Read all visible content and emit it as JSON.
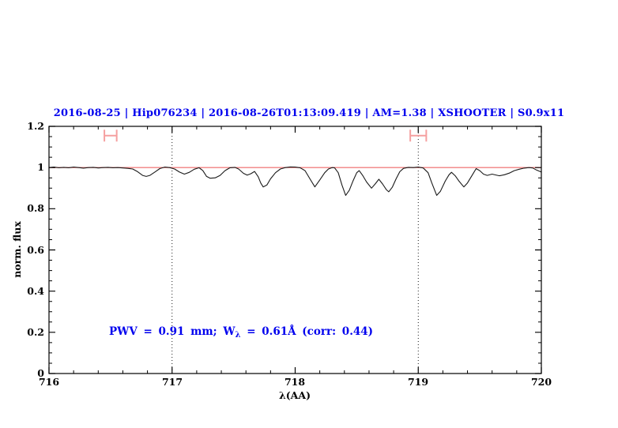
{
  "title": "2016-08-25 | Hip076234 | 2016-08-26T01:13:09.419 | AM=1.38 | XSHOOTER | S0.9x11",
  "annotation": {
    "prefix": "PWV = 0.91 mm; W",
    "subscript": "λ",
    "suffix": " = 0.61Å (corr: 0.44)"
  },
  "colors": {
    "accent_blue": "#0000EE",
    "continuum_red": "#F08080",
    "marker_pink": "#F5A0A0",
    "spectrum": "#1A1A1A",
    "frame": "#000000"
  },
  "chart_data": {
    "type": "line",
    "title": "2016-08-25 | Hip076234 | 2016-08-26T01:13:09.419 | AM=1.38 | XSHOOTER | S0.9x11",
    "xlabel": "λ(AA)",
    "ylabel": "norm. flux",
    "xlim": [
      716,
      720
    ],
    "ylim": [
      0,
      1.2
    ],
    "xtick_labels": [
      "716",
      "717",
      "718",
      "719",
      "720"
    ],
    "ytick_labels": [
      "0",
      "0.2",
      "0.4",
      "0.6",
      "0.8",
      "1",
      "1.2"
    ],
    "x_major_step": 1,
    "x_minor_step": 0.2,
    "y_major_step": 0.2,
    "y_minor_step": 0.05,
    "grid": "dotted vertical lines at integration window edges",
    "dotted_vlines_x": [
      717,
      719
    ],
    "continuum_y": 1.0,
    "range_markers": [
      {
        "x_center": 716.5,
        "x_half_width": 0.05,
        "y": 1.155
      },
      {
        "x_center": 719.0,
        "x_half_width": 0.065,
        "y": 1.155
      }
    ],
    "series": [
      {
        "name": "normalized telluric spectrum",
        "points": [
          [
            716.0,
            1.0
          ],
          [
            716.04,
            1.002
          ],
          [
            716.08,
            0.999
          ],
          [
            716.12,
            1.001
          ],
          [
            716.16,
            0.999
          ],
          [
            716.2,
            1.002
          ],
          [
            716.24,
            1.0
          ],
          [
            716.28,
            0.997
          ],
          [
            716.32,
            1.0
          ],
          [
            716.36,
            1.001
          ],
          [
            716.4,
            0.998
          ],
          [
            716.44,
            1.0
          ],
          [
            716.48,
            1.001
          ],
          [
            716.52,
            0.999
          ],
          [
            716.56,
            1.0
          ],
          [
            716.6,
            0.998
          ],
          [
            716.64,
            0.996
          ],
          [
            716.68,
            0.993
          ],
          [
            716.72,
            0.98
          ],
          [
            716.76,
            0.962
          ],
          [
            716.79,
            0.957
          ],
          [
            716.82,
            0.962
          ],
          [
            716.86,
            0.978
          ],
          [
            716.9,
            0.995
          ],
          [
            716.94,
            1.002
          ],
          [
            716.98,
            1.0
          ],
          [
            717.02,
            0.993
          ],
          [
            717.06,
            0.978
          ],
          [
            717.1,
            0.968
          ],
          [
            717.14,
            0.977
          ],
          [
            717.18,
            0.992
          ],
          [
            717.22,
            0.999
          ],
          [
            717.25,
            0.985
          ],
          [
            717.28,
            0.957
          ],
          [
            717.31,
            0.948
          ],
          [
            717.35,
            0.95
          ],
          [
            717.39,
            0.962
          ],
          [
            717.43,
            0.985
          ],
          [
            717.47,
            0.999
          ],
          [
            717.51,
            1.001
          ],
          [
            717.54,
            0.993
          ],
          [
            717.58,
            0.972
          ],
          [
            717.61,
            0.963
          ],
          [
            717.64,
            0.97
          ],
          [
            717.67,
            0.981
          ],
          [
            717.7,
            0.955
          ],
          [
            717.72,
            0.925
          ],
          [
            717.74,
            0.906
          ],
          [
            717.77,
            0.915
          ],
          [
            717.8,
            0.945
          ],
          [
            717.84,
            0.975
          ],
          [
            717.88,
            0.993
          ],
          [
            717.92,
            1.0
          ],
          [
            717.96,
            1.003
          ],
          [
            718.0,
            1.002
          ],
          [
            718.04,
            0.999
          ],
          [
            718.08,
            0.985
          ],
          [
            718.12,
            0.945
          ],
          [
            718.16,
            0.906
          ],
          [
            718.2,
            0.94
          ],
          [
            718.24,
            0.975
          ],
          [
            718.27,
            0.993
          ],
          [
            718.3,
            1.0
          ],
          [
            718.32,
            0.999
          ],
          [
            718.35,
            0.975
          ],
          [
            718.38,
            0.915
          ],
          [
            718.41,
            0.865
          ],
          [
            718.44,
            0.89
          ],
          [
            718.47,
            0.935
          ],
          [
            718.5,
            0.975
          ],
          [
            718.52,
            0.985
          ],
          [
            718.55,
            0.96
          ],
          [
            718.58,
            0.93
          ],
          [
            718.62,
            0.9
          ],
          [
            718.65,
            0.92
          ],
          [
            718.68,
            0.943
          ],
          [
            718.71,
            0.92
          ],
          [
            718.74,
            0.893
          ],
          [
            718.76,
            0.882
          ],
          [
            718.79,
            0.905
          ],
          [
            718.82,
            0.945
          ],
          [
            718.85,
            0.98
          ],
          [
            718.88,
            0.996
          ],
          [
            718.92,
            1.001
          ],
          [
            718.96,
            1.0
          ],
          [
            719.0,
            1.002
          ],
          [
            719.04,
            0.998
          ],
          [
            719.08,
            0.975
          ],
          [
            719.11,
            0.925
          ],
          [
            719.15,
            0.865
          ],
          [
            719.18,
            0.885
          ],
          [
            719.22,
            0.935
          ],
          [
            719.25,
            0.965
          ],
          [
            719.27,
            0.977
          ],
          [
            719.3,
            0.96
          ],
          [
            719.33,
            0.935
          ],
          [
            719.37,
            0.906
          ],
          [
            719.4,
            0.925
          ],
          [
            719.44,
            0.965
          ],
          [
            719.47,
            0.995
          ],
          [
            719.5,
            0.985
          ],
          [
            719.53,
            0.968
          ],
          [
            719.56,
            0.962
          ],
          [
            719.6,
            0.968
          ],
          [
            719.63,
            0.964
          ],
          [
            719.66,
            0.96
          ],
          [
            719.7,
            0.965
          ],
          [
            719.74,
            0.973
          ],
          [
            719.78,
            0.985
          ],
          [
            719.82,
            0.992
          ],
          [
            719.86,
            0.997
          ],
          [
            719.9,
            1.0
          ],
          [
            719.93,
            0.998
          ],
          [
            719.96,
            0.988
          ],
          [
            720.0,
            0.978
          ]
        ]
      }
    ]
  }
}
